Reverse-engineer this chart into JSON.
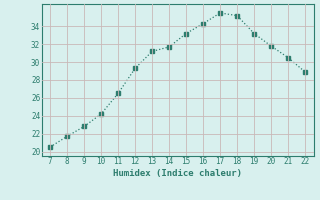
{
  "x": [
    7,
    8,
    9,
    10,
    11,
    12,
    13,
    14,
    15,
    16,
    17,
    18,
    19,
    20,
    21,
    22
  ],
  "y": [
    20.5,
    21.7,
    22.8,
    24.2,
    26.5,
    29.3,
    31.2,
    31.7,
    33.2,
    34.3,
    35.5,
    35.2,
    33.2,
    31.8,
    30.5,
    28.9
  ],
  "xlabel": "Humidex (Indice chaleur)",
  "xlim": [
    6.5,
    22.5
  ],
  "ylim": [
    19.5,
    36.5
  ],
  "yticks": [
    20,
    22,
    24,
    26,
    28,
    30,
    32,
    34
  ],
  "xticks": [
    7,
    8,
    9,
    10,
    11,
    12,
    13,
    14,
    15,
    16,
    17,
    18,
    19,
    20,
    21,
    22
  ],
  "line_color": "#2d7d6e",
  "bg_color": "#d8f0ee",
  "grid_color": "#c8dbd8",
  "spine_color": "#2d7d6e"
}
